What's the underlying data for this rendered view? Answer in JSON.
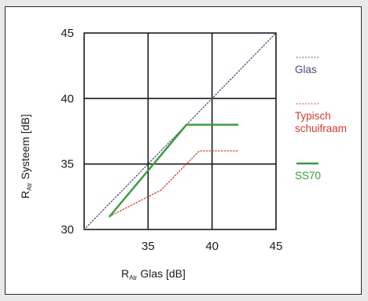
{
  "chart_data": {
    "type": "line",
    "xlabel": {
      "main": "R",
      "sub": "Atr",
      "rest": " Glas [dB]"
    },
    "ylabel": {
      "main": "R",
      "sub": "Atr",
      "rest": " Systeem [dB]"
    },
    "xlim": [
      30,
      45
    ],
    "ylim": [
      30,
      45
    ],
    "xticks": [
      "35",
      "40",
      "45"
    ],
    "yticks": [
      "30",
      "35",
      "40",
      "45"
    ],
    "grid": true,
    "legend_position": "right",
    "series": [
      {
        "name": "Glas",
        "color": "#4a4a88",
        "style": "dotted",
        "x": [
          30,
          45
        ],
        "y": [
          30,
          45
        ]
      },
      {
        "name": "Typisch schuifraam",
        "label_lines": [
          "Typisch",
          "schuifraam"
        ],
        "color": "#d43a32",
        "style": "dotted",
        "x": [
          32,
          36,
          39,
          42
        ],
        "y": [
          31,
          33,
          36,
          36
        ]
      },
      {
        "name": "SS70",
        "color": "#3a9a3a",
        "style": "solid",
        "x": [
          32,
          38,
          42
        ],
        "y": [
          31,
          38,
          38
        ]
      }
    ]
  }
}
